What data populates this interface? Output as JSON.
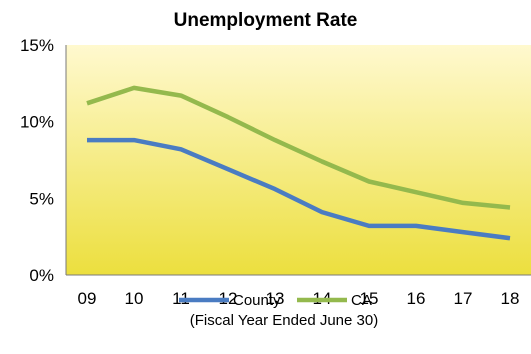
{
  "chart_data": {
    "type": "line",
    "title": "Unemployment Rate",
    "xlabel": "(Fiscal Year Ended June 30)",
    "ylabel": "",
    "categories": [
      "09",
      "10",
      "11",
      "12",
      "13",
      "14",
      "15",
      "16",
      "17",
      "18"
    ],
    "series": [
      {
        "name": "County",
        "color": "#4a7cc2",
        "values": [
          8.8,
          8.8,
          8.2,
          6.9,
          5.6,
          4.1,
          3.2,
          3.2,
          2.8,
          2.4
        ]
      },
      {
        "name": "CA",
        "color": "#94b94d",
        "values": [
          11.2,
          12.2,
          11.7,
          10.3,
          8.8,
          7.4,
          6.1,
          5.4,
          4.7,
          4.4
        ]
      }
    ],
    "ylim": [
      0,
      15
    ],
    "yticks": [
      {
        "value": 0,
        "label": "0%"
      },
      {
        "value": 5,
        "label": "5%"
      },
      {
        "value": 10,
        "label": "10%"
      },
      {
        "value": 15,
        "label": "15%"
      }
    ],
    "grid": false,
    "legend": "bottom",
    "background": {
      "top": "#fff9cf",
      "bottom": "#ecdf3e"
    }
  }
}
